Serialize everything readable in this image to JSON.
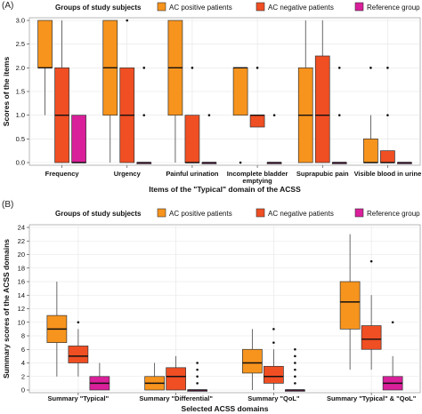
{
  "chart_data": [
    {
      "type": "box",
      "panel_label": "(A)",
      "legend_title": "Groups of study subjects",
      "legend_placement": "top",
      "series": [
        {
          "name": "AC positive patients",
          "color": "#F7941D"
        },
        {
          "name": "AC negative patients",
          "color": "#F04E23"
        },
        {
          "name": "Reference group",
          "color": "#D91F9A"
        }
      ],
      "xlabel": "Items of the \"Typical\" domain of the ACSS",
      "ylabel": "Scores of the items",
      "ylim": [
        0,
        3.0
      ],
      "yticks": [
        "0.0",
        "0.5",
        "1.0",
        "1.5",
        "2.0",
        "2.5",
        "3.0"
      ],
      "grid": true,
      "categories": [
        "Frequency",
        "Urgency",
        "Painful urination",
        "Incomplete bladder emptying",
        "Suprapubic pain",
        "Visible blood in urine"
      ],
      "category_labels": [
        [
          "Frequency"
        ],
        [
          "Urgency"
        ],
        [
          "Painful urination"
        ],
        [
          "Incomplete bladder",
          "emptying"
        ],
        [
          "Suprapubic pain"
        ],
        [
          "Visible blood in urine"
        ]
      ],
      "boxes": [
        [
          {
            "min": 1,
            "q1": 2,
            "median": 2,
            "q3": 3,
            "max": 3,
            "outliers": []
          },
          {
            "min": 0,
            "q1": 0,
            "median": 1,
            "q3": 2,
            "max": 3,
            "outliers": []
          },
          {
            "min": 0,
            "q1": 0,
            "median": 0,
            "q3": 1,
            "max": 1,
            "outliers": []
          }
        ],
        [
          {
            "min": 0,
            "q1": 1,
            "median": 2,
            "q3": 3,
            "max": 3,
            "outliers": []
          },
          {
            "min": 0,
            "q1": 0,
            "median": 1,
            "q3": 2,
            "max": 2,
            "outliers": [
              3
            ]
          },
          {
            "min": 0,
            "q1": 0,
            "median": 0,
            "q3": 0,
            "max": 0,
            "outliers": [
              1,
              2
            ]
          }
        ],
        [
          {
            "min": 0,
            "q1": 1,
            "median": 2,
            "q3": 3,
            "max": 3,
            "outliers": []
          },
          {
            "min": 0,
            "q1": 0,
            "median": 0,
            "q3": 1,
            "max": 1,
            "outliers": [
              2
            ]
          },
          {
            "min": 0,
            "q1": 0,
            "median": 0,
            "q3": 0,
            "max": 0,
            "outliers": [
              1
            ]
          }
        ],
        [
          {
            "min": 1,
            "q1": 1,
            "median": 2,
            "q3": 2,
            "max": 2,
            "outliers": [
              0
            ]
          },
          {
            "min": 0.75,
            "q1": 0.75,
            "median": 1,
            "q3": 1,
            "max": 1,
            "outliers": [
              2
            ]
          },
          {
            "min": 0,
            "q1": 0,
            "median": 0,
            "q3": 0,
            "max": 0,
            "outliers": [
              1
            ]
          }
        ],
        [
          {
            "min": 0,
            "q1": 0,
            "median": 1,
            "q3": 2,
            "max": 3,
            "outliers": []
          },
          {
            "min": 0,
            "q1": 0,
            "median": 1,
            "q3": 2.25,
            "max": 3,
            "outliers": []
          },
          {
            "min": 0,
            "q1": 0,
            "median": 0,
            "q3": 0,
            "max": 0,
            "outliers": [
              1,
              2
            ]
          }
        ],
        [
          {
            "min": 0,
            "q1": 0,
            "median": 0,
            "q3": 0.5,
            "max": 1,
            "outliers": [
              2
            ]
          },
          {
            "min": 0,
            "q1": 0,
            "median": 0,
            "q3": 0.25,
            "max": 0.25,
            "outliers": [
              1,
              2
            ]
          },
          {
            "min": 0,
            "q1": 0,
            "median": 0,
            "q3": 0,
            "max": 0,
            "outliers": []
          }
        ]
      ]
    },
    {
      "type": "box",
      "panel_label": "(B)",
      "legend_title": "Groups of study subjects",
      "legend_placement": "top",
      "series": [
        {
          "name": "AC positive patients",
          "color": "#F7941D"
        },
        {
          "name": "AC negative patients",
          "color": "#F04E23"
        },
        {
          "name": "Reference group",
          "color": "#D91F9A"
        }
      ],
      "xlabel": "Selected ACSS domains",
      "ylabel": "Summary scores of the ACSS domains",
      "ylim": [
        0,
        24
      ],
      "yticks": [
        "0",
        "2",
        "4",
        "6",
        "8",
        "10",
        "12",
        "14",
        "16",
        "18",
        "20",
        "22",
        "24"
      ],
      "grid": true,
      "categories": [
        "Summary \"Typical\"",
        "Summary \"Differential\"",
        "Summary \"QoL\"",
        "Summary \"Typical\" & \"QoL\""
      ],
      "category_labels": [
        [
          "Summary \"Typical\""
        ],
        [
          "Summary \"Differential\""
        ],
        [
          "Summary \"QoL\""
        ],
        [
          "Summary \"Typical\" & \"QoL\""
        ]
      ],
      "boxes": [
        [
          {
            "min": 2,
            "q1": 7,
            "median": 9,
            "q3": 11,
            "max": 16,
            "outliers": []
          },
          {
            "min": 2,
            "q1": 4,
            "median": 5,
            "q3": 6.5,
            "max": 9,
            "outliers": [
              10
            ]
          },
          {
            "min": 0,
            "q1": 0,
            "median": 1,
            "q3": 2,
            "max": 4,
            "outliers": []
          }
        ],
        [
          {
            "min": 0,
            "q1": 0,
            "median": 1,
            "q3": 2,
            "max": 4,
            "outliers": []
          },
          {
            "min": 0,
            "q1": 0,
            "median": 2,
            "q3": 3.3,
            "max": 5,
            "outliers": []
          },
          {
            "min": 0,
            "q1": 0,
            "median": 0,
            "q3": 0,
            "max": 0,
            "outliers": [
              1,
              2,
              3,
              4
            ]
          }
        ],
        [
          {
            "min": 0,
            "q1": 2.5,
            "median": 4,
            "q3": 6,
            "max": 9,
            "outliers": []
          },
          {
            "min": 0,
            "q1": 1,
            "median": 2,
            "q3": 3.5,
            "max": 6,
            "outliers": [
              7,
              9
            ]
          },
          {
            "min": 0,
            "q1": 0,
            "median": 0,
            "q3": 0,
            "max": 0,
            "outliers": [
              1,
              2,
              3,
              4,
              5,
              6
            ]
          }
        ],
        [
          {
            "min": 3,
            "q1": 9,
            "median": 13,
            "q3": 16,
            "max": 23,
            "outliers": []
          },
          {
            "min": 3,
            "q1": 6,
            "median": 7.5,
            "q3": 9.5,
            "max": 14,
            "outliers": [
              19
            ]
          },
          {
            "min": 0,
            "q1": 0,
            "median": 1,
            "q3": 2,
            "max": 5,
            "outliers": [
              10
            ]
          }
        ]
      ]
    }
  ]
}
